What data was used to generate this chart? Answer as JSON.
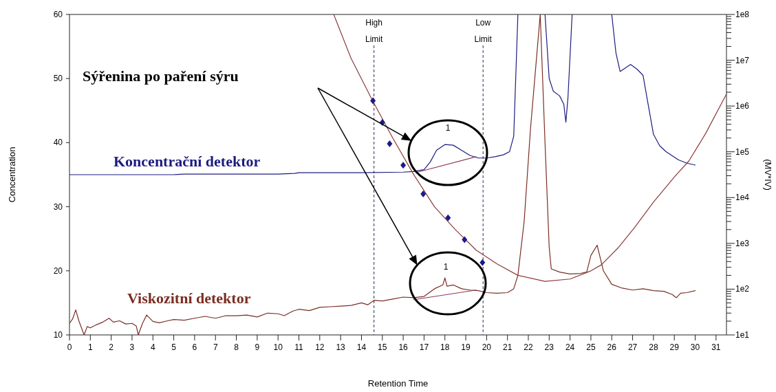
{
  "chart_data": {
    "type": "line",
    "xlabel": "Retention Time",
    "ylabel": "Concentration",
    "y2label": "(MV*IV)",
    "xlim": [
      0,
      31.5
    ],
    "xticks": [
      0,
      1,
      2,
      3,
      4,
      5,
      6,
      7,
      8,
      9,
      10,
      11,
      12,
      13,
      14,
      15,
      16,
      17,
      18,
      19,
      20,
      21,
      22,
      23,
      24,
      25,
      26,
      27,
      28,
      29,
      30,
      31
    ],
    "ylim": [
      10,
      60
    ],
    "yticks": [
      10,
      20,
      30,
      40,
      50,
      60
    ],
    "log": "y2",
    "y2lim": [
      10,
      100000000
    ],
    "y2ticks": [
      {
        "value": 10,
        "label": "1e1"
      },
      {
        "value": 20,
        "label": null
      },
      {
        "value": 30,
        "label": null
      },
      {
        "value": 40,
        "label": null
      },
      {
        "value": 50,
        "label": null
      },
      {
        "value": 60,
        "label": null
      },
      {
        "value": 70,
        "label": null
      },
      {
        "value": 80,
        "label": null
      },
      {
        "value": 90,
        "label": null
      },
      {
        "value": 100,
        "label": "1e2"
      },
      {
        "value": 200,
        "label": null
      },
      {
        "value": 300,
        "label": null
      },
      {
        "value": 400,
        "label": null
      },
      {
        "value": 500,
        "label": null
      },
      {
        "value": 600,
        "label": null
      },
      {
        "value": 700,
        "label": null
      },
      {
        "value": 800,
        "label": null
      },
      {
        "value": 900,
        "label": null
      },
      {
        "value": 1000,
        "label": "1e3"
      },
      {
        "value": 2000,
        "label": null
      },
      {
        "value": 3000,
        "label": null
      },
      {
        "value": 4000,
        "label": null
      },
      {
        "value": 5000,
        "label": null
      },
      {
        "value": 6000,
        "label": null
      },
      {
        "value": 7000,
        "label": null
      },
      {
        "value": 8000,
        "label": null
      },
      {
        "value": 9000,
        "label": null
      },
      {
        "value": 10000,
        "label": "1e4"
      },
      {
        "value": 20000,
        "label": null
      },
      {
        "value": 30000,
        "label": null
      },
      {
        "value": 40000,
        "label": null
      },
      {
        "value": 50000,
        "label": null
      },
      {
        "value": 60000,
        "label": null
      },
      {
        "value": 70000,
        "label": null
      },
      {
        "value": 80000,
        "label": null
      },
      {
        "value": 90000,
        "label": null
      },
      {
        "value": 100000,
        "label": "1e5"
      },
      {
        "value": 200000,
        "label": null
      },
      {
        "value": 300000,
        "label": null
      },
      {
        "value": 400000,
        "label": null
      },
      {
        "value": 500000,
        "label": null
      },
      {
        "value": 600000,
        "label": null
      },
      {
        "value": 700000,
        "label": null
      },
      {
        "value": 800000,
        "label": null
      },
      {
        "value": 900000,
        "label": null
      },
      {
        "value": 1000000,
        "label": "1e6"
      },
      {
        "value": 2000000,
        "label": null
      },
      {
        "value": 3000000,
        "label": null
      },
      {
        "value": 4000000,
        "label": null
      },
      {
        "value": 5000000,
        "label": null
      },
      {
        "value": 6000000,
        "label": null
      },
      {
        "value": 7000000,
        "label": null
      },
      {
        "value": 8000000,
        "label": null
      },
      {
        "value": 9000000,
        "label": null
      },
      {
        "value": 10000000,
        "label": "1e7"
      },
      {
        "value": 20000000,
        "label": null
      },
      {
        "value": 30000000,
        "label": null
      },
      {
        "value": 40000000,
        "label": null
      },
      {
        "value": 50000000,
        "label": null
      },
      {
        "value": 60000000,
        "label": null
      },
      {
        "value": 70000000,
        "label": null
      },
      {
        "value": 80000000,
        "label": null
      },
      {
        "value": 90000000,
        "label": null
      },
      {
        "value": 100000000,
        "label": "1e8"
      }
    ],
    "grid": false,
    "line_style": "solid",
    "series": [
      {
        "name": "Koncentrační detektor",
        "color": "#1c1c80",
        "x": [
          0,
          5,
          5.5,
          10,
          10.8,
          11,
          14,
          16,
          16.5,
          17,
          17.3,
          17.6,
          18,
          18.4,
          18.8,
          19.2,
          19.6,
          20,
          20.4,
          20.8,
          21.1,
          21.3,
          21.5,
          22,
          22.8,
          23,
          23.2,
          23.5,
          23.7,
          23.8,
          23.9,
          24.1,
          25,
          26.0,
          26.2,
          26.4,
          26.9,
          27.2,
          27.5,
          27.7,
          28.0,
          28.3,
          28.6,
          29.2,
          29.6,
          30
        ],
        "values": [
          35,
          35,
          35.1,
          35.1,
          35.2,
          35.3,
          35.3,
          35.4,
          35.5,
          35.8,
          37,
          38.8,
          39.7,
          39.6,
          38.8,
          38,
          37.6,
          37.6,
          37.8,
          38.1,
          38.6,
          41,
          60,
          null,
          60,
          50,
          48,
          47.3,
          46,
          43.2,
          47,
          60,
          null,
          60,
          54,
          51.1,
          52.2,
          51.5,
          50.5,
          46.8,
          41.3,
          39.5,
          38.6,
          37.3,
          36.8,
          36.5
        ]
      },
      {
        "name": "Viskozitní detektor",
        "color": "#7a2e22",
        "x": [
          0,
          0.15,
          0.3,
          0.45,
          0.7,
          0.85,
          1,
          1.3,
          1.6,
          1.9,
          2.1,
          2.4,
          2.7,
          3,
          3.2,
          3.3,
          3.5,
          3.7,
          4,
          4.3,
          4.7,
          5,
          5.5,
          6,
          6.5,
          7,
          7.5,
          8,
          8.5,
          9,
          9.5,
          10,
          10.3,
          10.7,
          11,
          11.5,
          12,
          12.5,
          13,
          13.5,
          14,
          14.3,
          14.6,
          15,
          15.5,
          16,
          16.5,
          17,
          17.5,
          17.9,
          18,
          18.1,
          18.4,
          18.8,
          19.2,
          19.6,
          20,
          20.5,
          21,
          21.3,
          21.5,
          21.8,
          22.1,
          22.57,
          22.8,
          23,
          23.1,
          23.5,
          24,
          24.5,
          24.8,
          25,
          25.3,
          25.6,
          26,
          26.5,
          27,
          27.5,
          28,
          28.5,
          28.9,
          29.1,
          29.3,
          29.6,
          30
        ],
        "values": [
          11.8,
          12.5,
          13.9,
          12.2,
          10.0,
          11.3,
          11.1,
          11.6,
          12.0,
          12.6,
          12.0,
          12.2,
          11.7,
          11.8,
          11.4,
          10.0,
          11.8,
          13.1,
          12.1,
          11.9,
          12.2,
          12.4,
          12.3,
          12.6,
          12.9,
          12.6,
          13.0,
          13.0,
          13.1,
          12.8,
          13.4,
          13.3,
          13.0,
          13.7,
          14.0,
          13.8,
          14.3,
          14.4,
          14.5,
          14.6,
          15.0,
          14.7,
          15.4,
          15.3,
          15.6,
          15.9,
          15.8,
          16.0,
          17.2,
          17.8,
          18.9,
          17.6,
          17.8,
          17.2,
          17.0,
          16.9,
          16.6,
          16.5,
          16.6,
          17.2,
          19.3,
          27.7,
          42,
          60,
          40,
          23.7,
          20.3,
          19.8,
          19.5,
          19.6,
          19.8,
          22.4,
          24.0,
          20.0,
          17.9,
          17.3,
          17.0,
          17.2,
          16.9,
          16.8,
          16.3,
          15.8,
          16.5,
          16.6,
          16.9
        ]
      },
      {
        "type": "line",
        "axis": "y2",
        "color": "#8c3a3a",
        "x": [
          12.67,
          13.5,
          14.5,
          15.5,
          16.5,
          17.5,
          18.5,
          19.5,
          20.5,
          21.5,
          22.8,
          24,
          25,
          25.5,
          26.3,
          27.1,
          28,
          29,
          29.7,
          30.5,
          31.5
        ],
        "values": [
          100000000,
          11000000,
          1400000,
          200000,
          32000,
          6300,
          2000,
          710,
          355,
          200,
          148,
          166,
          251,
          339,
          794,
          2240,
          7940,
          28200,
          63100,
          251000,
          1820000
        ]
      },
      {
        "type": "scatter",
        "axis": "y2",
        "marker": "diamond",
        "color": "#1a1a8c",
        "x": [
          14.55,
          15.0,
          15.35,
          16.0,
          16.96,
          18.15,
          18.94,
          19.8
        ],
        "values": [
          1300000,
          440000,
          150000,
          51000,
          12000,
          3600,
          1200,
          380
        ]
      },
      {
        "type": "line",
        "color": "#8c3a5a",
        "x": [
          16.7,
          19.5
        ],
        "values": [
          35.4,
          37.8
        ]
      },
      {
        "type": "line",
        "color": "#8c3a5a",
        "x": [
          16.5,
          19.5
        ],
        "values": [
          15.5,
          17.0
        ]
      }
    ],
    "ref_lines": [
      {
        "axis": "x",
        "value": 14.6,
        "label": "High Limit",
        "color": "#2a2a50",
        "line_style": "dashed"
      },
      {
        "axis": "x",
        "value": 19.83,
        "label": "Low Limit",
        "color": "#2a2a50",
        "line_style": "dashed"
      }
    ],
    "annotations": [
      "Sýřenina po paření sýru",
      "1",
      "1"
    ]
  }
}
